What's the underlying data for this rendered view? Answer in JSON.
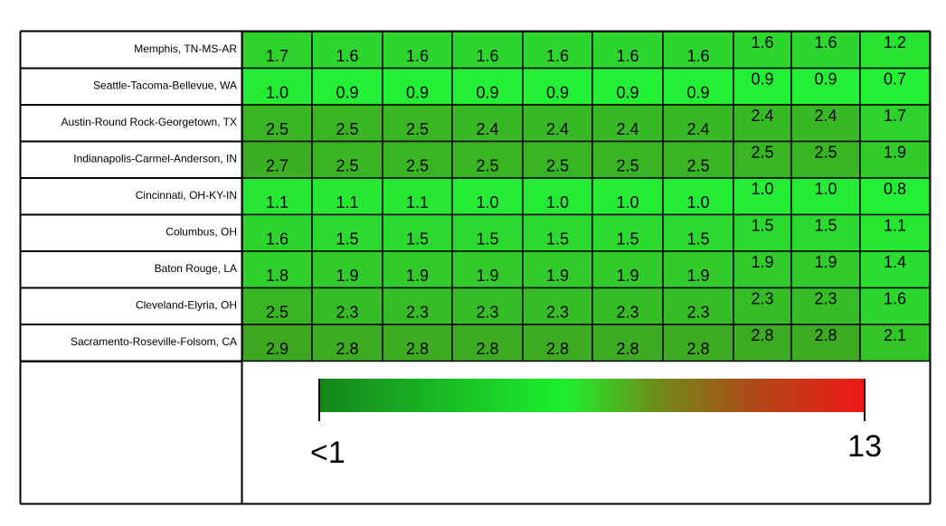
{
  "chart_data": {
    "type": "heatmap",
    "rows": [
      "Memphis, TN-MS-AR",
      "Seattle-Tacoma-Bellevue, WA",
      "Austin-Round Rock-Georgetown, TX",
      "Indianapolis-Carmel-Anderson, IN",
      "Cincinnati, OH-KY-IN",
      "Columbus, OH",
      "Baton Rouge, LA",
      "Cleveland-Elyria, OH",
      "Sacramento-Roseville-Folsom, CA"
    ],
    "values": [
      [
        "1.7",
        "1.6",
        "1.6",
        "1.6",
        "1.6",
        "1.6",
        "1.6",
        "1.6",
        "1.6",
        "1.2"
      ],
      [
        "1.0",
        "0.9",
        "0.9",
        "0.9",
        "0.9",
        "0.9",
        "0.9",
        "0.9",
        "0.9",
        "0.7"
      ],
      [
        "2.5",
        "2.5",
        "2.5",
        "2.4",
        "2.4",
        "2.4",
        "2.4",
        "2.4",
        "2.4",
        "1.7"
      ],
      [
        "2.7",
        "2.5",
        "2.5",
        "2.5",
        "2.5",
        "2.5",
        "2.5",
        "2.5",
        "2.5",
        "1.9"
      ],
      [
        "1.1",
        "1.1",
        "1.1",
        "1.0",
        "1.0",
        "1.0",
        "1.0",
        "1.0",
        "1.0",
        "0.8"
      ],
      [
        "1.6",
        "1.5",
        "1.5",
        "1.5",
        "1.5",
        "1.5",
        "1.5",
        "1.5",
        "1.5",
        "1.1"
      ],
      [
        "1.8",
        "1.9",
        "1.9",
        "1.9",
        "1.9",
        "1.9",
        "1.9",
        "1.9",
        "1.9",
        "1.4"
      ],
      [
        "2.5",
        "2.3",
        "2.3",
        "2.3",
        "2.3",
        "2.3",
        "2.3",
        "2.3",
        "2.3",
        "1.6"
      ],
      [
        "2.9",
        "2.8",
        "2.8",
        "2.8",
        "2.8",
        "2.8",
        "2.8",
        "2.8",
        "2.8",
        "2.1"
      ]
    ],
    "color_scale": {
      "min_label": "<1",
      "max_label": "13",
      "min_value": 1,
      "max_value": 13,
      "stops": [
        "#14851b",
        "#1cf02c",
        "#6e8c18",
        "#b04818",
        "#f01818"
      ]
    },
    "grid": true
  }
}
